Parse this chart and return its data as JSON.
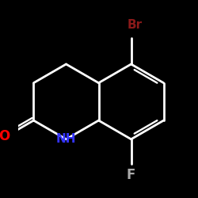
{
  "bg_color": "#000000",
  "bond_color": "#ffffff",
  "bond_lw": 2.0,
  "atoms": {
    "O": {
      "color": "#ff0000",
      "fontsize": 12
    },
    "NH": {
      "color": "#3333ff",
      "fontsize": 11
    },
    "Br": {
      "color": "#8b1a1a",
      "fontsize": 11
    },
    "F": {
      "color": "#aaaaaa",
      "fontsize": 12
    }
  },
  "figsize": [
    2.5,
    2.5
  ],
  "dpi": 100
}
